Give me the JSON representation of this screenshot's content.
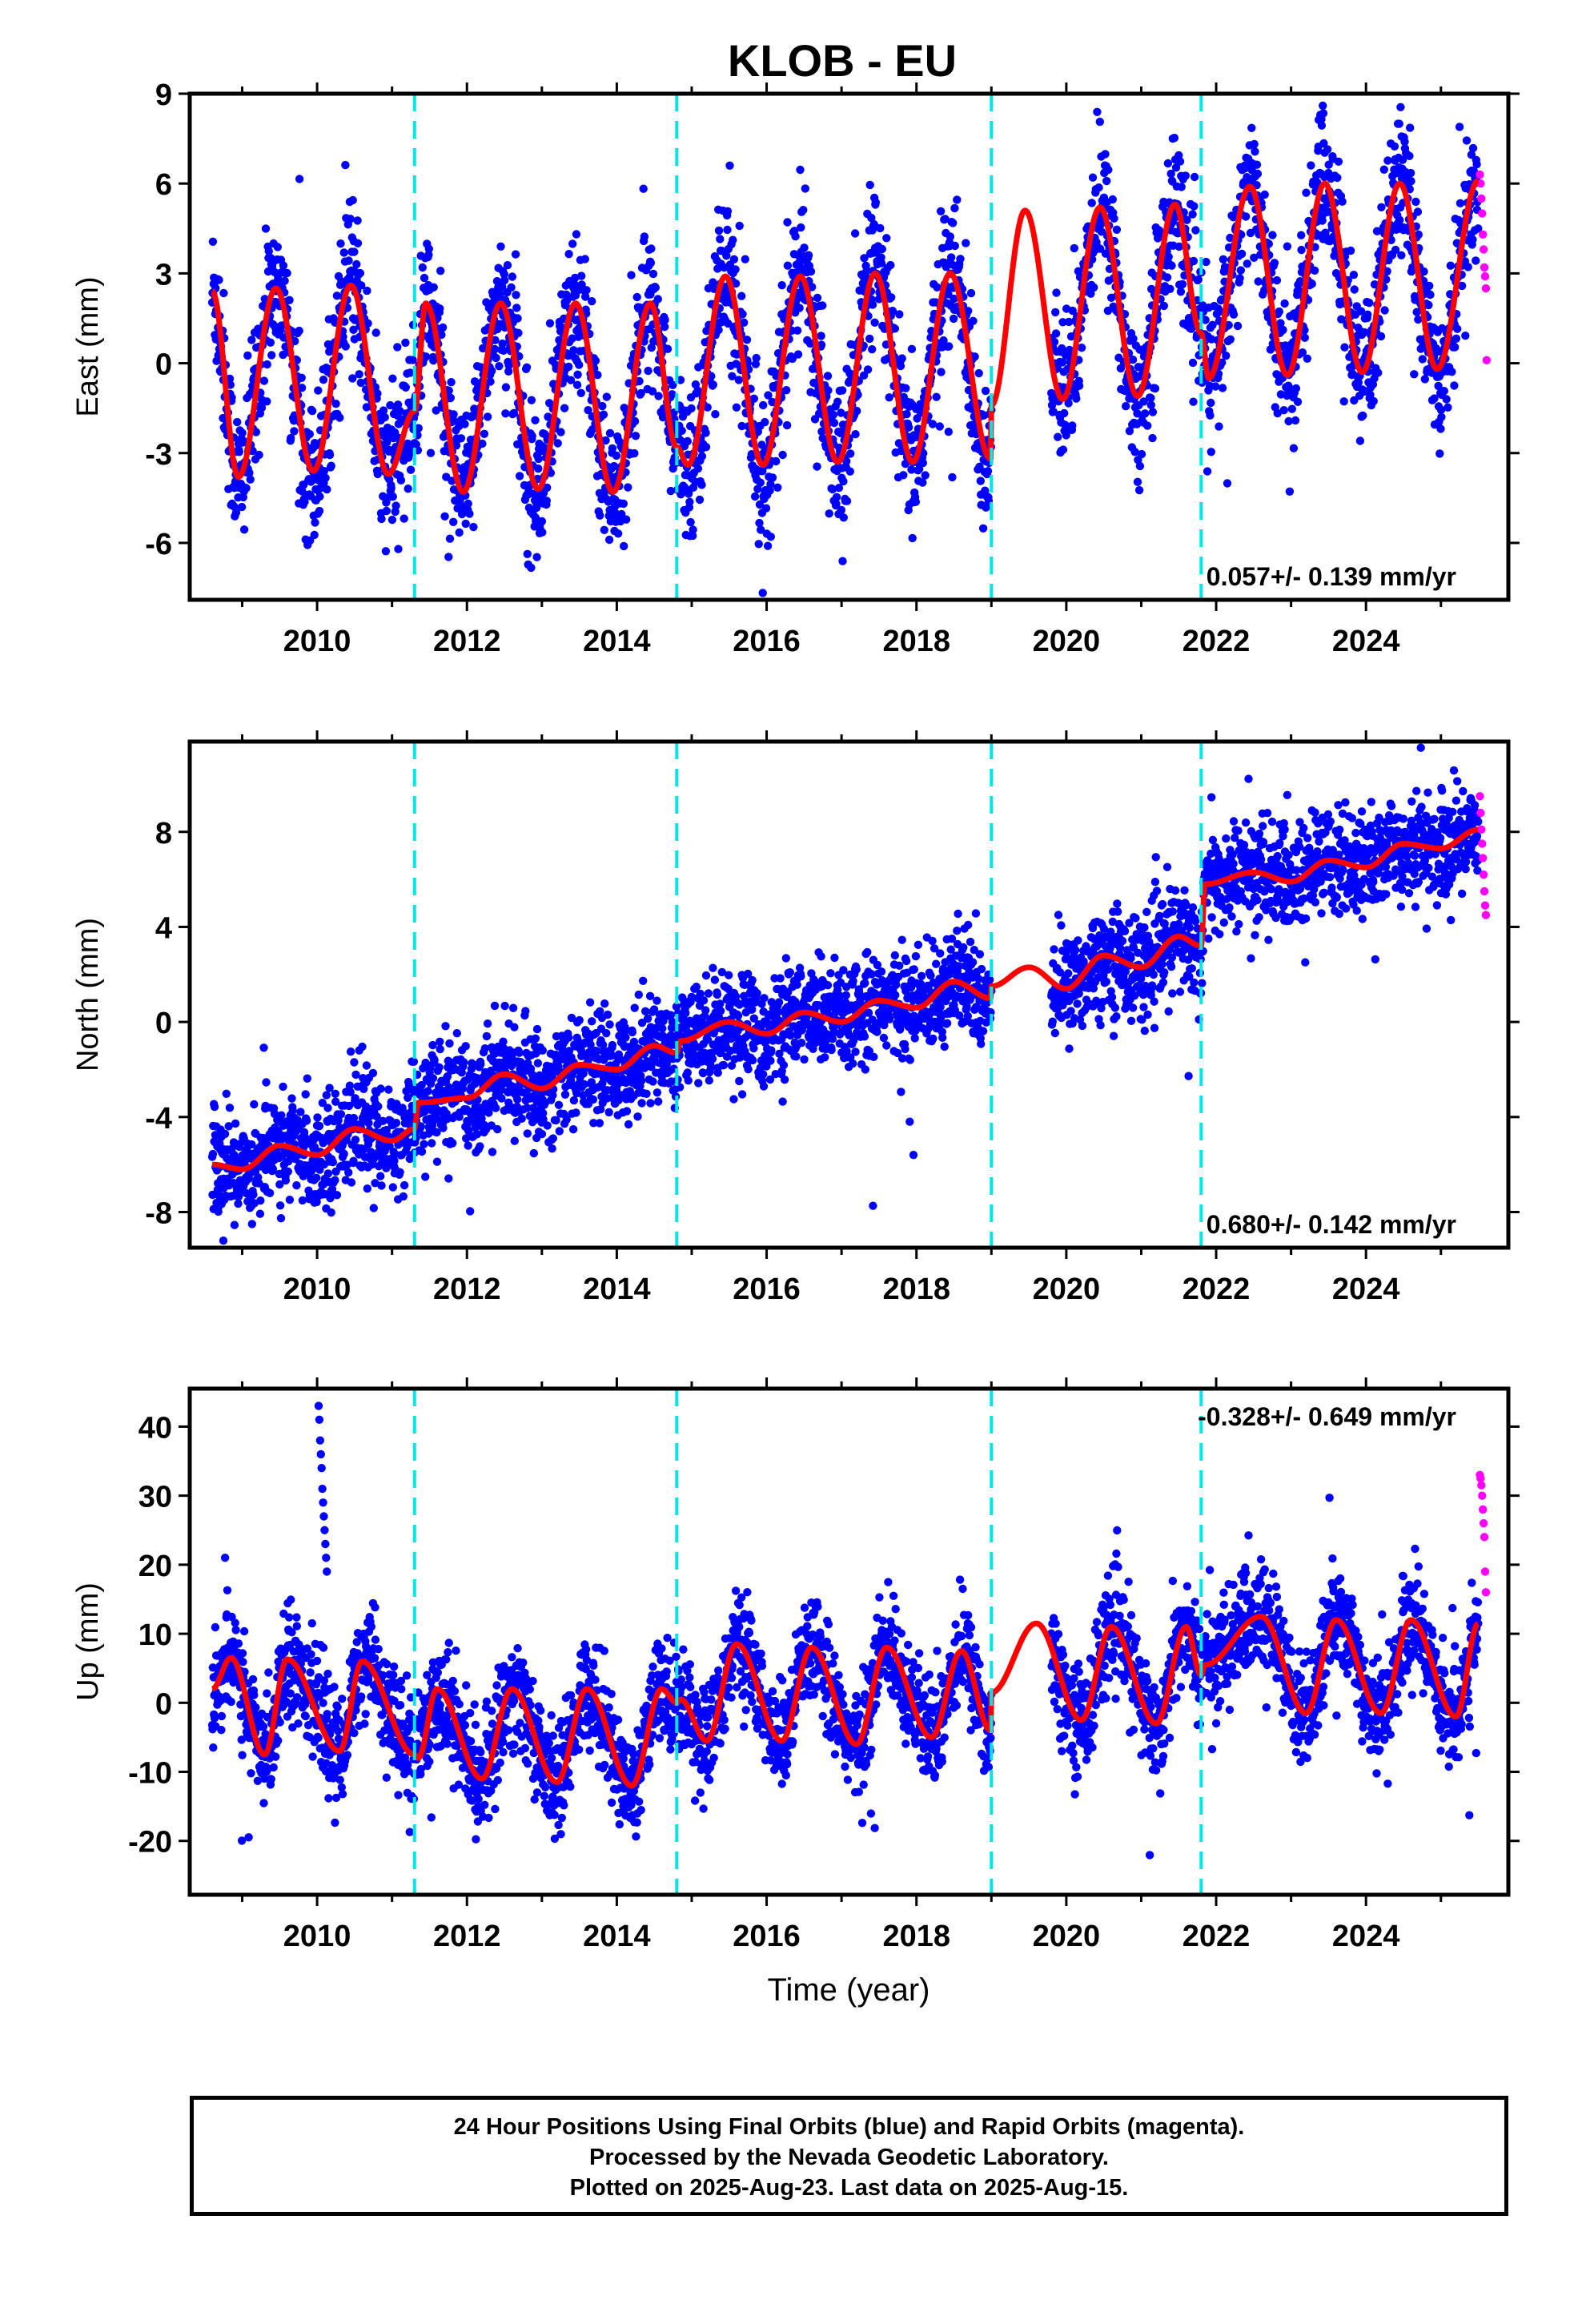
{
  "title": "KLOB - EU",
  "xlabel": "Time (year)",
  "x_ticks": [
    2010,
    2012,
    2014,
    2016,
    2018,
    2020,
    2022,
    2024
  ],
  "steps": [
    2011.3,
    2014.8,
    2019.0,
    2021.8
  ],
  "colors": {
    "final": "#0000ff",
    "rapid": "#ff00ff",
    "model": "#ff0000",
    "steps": "#00e5e5"
  },
  "caption": {
    "line1": "24 Hour Positions Using Final Orbits (blue) and Rapid Orbits (magenta).",
    "line2": "Processed by the Nevada Geodetic Laboratory.",
    "line3": "Plotted on 2025-Aug-23. Last data on 2025-Aug-15."
  },
  "chart_data": [
    {
      "type": "scatter",
      "name": "east",
      "ylabel": "East (mm)",
      "xlim": [
        2008.3,
        2025.9
      ],
      "ylim": [
        -7.9,
        9
      ],
      "yticks": [
        -6,
        -3,
        0,
        3,
        6,
        9
      ],
      "rate": "0.057+/- 0.139 mm/yr",
      "rate_position": "bottom-right",
      "series": [
        {
          "label": "final",
          "segments": [
            [
              2008.6,
              2019.0
            ],
            [
              2019.8,
              2025.5
            ]
          ],
          "trend": 0.06,
          "amp": 3.6,
          "noise": 1.2
        },
        {
          "label": "rapid",
          "x": [
            2025.52,
            2025.53,
            2025.54,
            2025.55,
            2025.56,
            2025.57,
            2025.58,
            2025.59,
            2025.6,
            2025.61
          ],
          "y": [
            6.3,
            6.0,
            5.5,
            5.0,
            4.3,
            3.8,
            3.2,
            2.9,
            2.5,
            0.1
          ]
        }
      ],
      "model_points": [
        [
          2008.6,
          2.4
        ],
        [
          2008.95,
          -3.8
        ],
        [
          2009.45,
          2.5
        ],
        [
          2009.95,
          -3.6
        ],
        [
          2010.45,
          2.6
        ],
        [
          2010.95,
          -3.7
        ],
        [
          2011.3,
          -1.6
        ],
        [
          2011.45,
          2.0
        ],
        [
          2011.95,
          -4.3
        ],
        [
          2012.45,
          2.0
        ],
        [
          2012.95,
          -4.2
        ],
        [
          2013.45,
          2.0
        ],
        [
          2013.95,
          -4.3
        ],
        [
          2014.45,
          2.0
        ],
        [
          2014.8,
          -2.8
        ],
        [
          2014.95,
          -3.4
        ],
        [
          2015.45,
          2.9
        ],
        [
          2015.95,
          -3.4
        ],
        [
          2016.45,
          2.9
        ],
        [
          2016.95,
          -3.3
        ],
        [
          2017.45,
          3.0
        ],
        [
          2017.95,
          -3.3
        ],
        [
          2018.45,
          3.0
        ],
        [
          2018.99,
          -3.2
        ],
        [
          2019.0,
          -1.4
        ],
        [
          2019.45,
          5.1
        ],
        [
          2019.95,
          -1.2
        ],
        [
          2020.45,
          5.2
        ],
        [
          2020.95,
          -1.1
        ],
        [
          2021.45,
          5.3
        ],
        [
          2021.8,
          1.0
        ],
        [
          2021.9,
          -0.5
        ],
        [
          2022.45,
          5.9
        ],
        [
          2022.95,
          -0.4
        ],
        [
          2023.45,
          6.0
        ],
        [
          2023.95,
          -0.3
        ],
        [
          2024.45,
          6.0
        ],
        [
          2024.95,
          -0.2
        ],
        [
          2025.5,
          6.1
        ]
      ]
    },
    {
      "type": "scatter",
      "name": "north",
      "ylabel": "North (mm)",
      "xlim": [
        2008.3,
        2025.9
      ],
      "ylim": [
        -9.5,
        11.8
      ],
      "yticks": [
        -8,
        -4,
        0,
        4,
        8
      ],
      "rate": "0.680+/- 0.142 mm/yr",
      "rate_position": "bottom-right",
      "series": [
        {
          "label": "final",
          "segments": [
            [
              2008.6,
              2019.0
            ],
            [
              2019.8,
              2025.5
            ]
          ],
          "trend": 0.68,
          "amp": 0.6,
          "noise": 1.1
        },
        {
          "label": "rapid",
          "x": [
            2025.52,
            2025.53,
            2025.54,
            2025.55,
            2025.56,
            2025.57,
            2025.58,
            2025.59,
            2025.6
          ],
          "y": [
            9.5,
            8.8,
            8.1,
            7.5,
            6.9,
            6.2,
            5.5,
            4.9,
            4.5
          ]
        }
      ],
      "model_points": [
        [
          2008.6,
          -6.0
        ],
        [
          2009.0,
          -6.2
        ],
        [
          2009.5,
          -5.2
        ],
        [
          2010.0,
          -5.6
        ],
        [
          2010.5,
          -4.5
        ],
        [
          2011.0,
          -5.0
        ],
        [
          2011.3,
          -4.5
        ],
        [
          2011.35,
          -3.4
        ],
        [
          2012.0,
          -3.2
        ],
        [
          2012.5,
          -2.2
        ],
        [
          2013.0,
          -2.8
        ],
        [
          2013.5,
          -1.8
        ],
        [
          2014.0,
          -2.0
        ],
        [
          2014.5,
          -1.0
        ],
        [
          2014.8,
          -1.3
        ],
        [
          2014.85,
          -0.8
        ],
        [
          2015.5,
          0.0
        ],
        [
          2016.0,
          -0.5
        ],
        [
          2016.5,
          0.4
        ],
        [
          2017.0,
          0.0
        ],
        [
          2017.5,
          0.9
        ],
        [
          2018.0,
          0.6
        ],
        [
          2018.5,
          1.7
        ],
        [
          2018.99,
          1.0
        ],
        [
          2019.0,
          1.5
        ],
        [
          2019.5,
          2.3
        ],
        [
          2020.0,
          1.4
        ],
        [
          2020.5,
          2.8
        ],
        [
          2021.0,
          2.3
        ],
        [
          2021.5,
          3.6
        ],
        [
          2021.8,
          3.2
        ],
        [
          2021.85,
          5.8
        ],
        [
          2022.5,
          6.3
        ],
        [
          2023.0,
          5.9
        ],
        [
          2023.5,
          6.8
        ],
        [
          2024.0,
          6.5
        ],
        [
          2024.5,
          7.5
        ],
        [
          2025.0,
          7.3
        ],
        [
          2025.5,
          8.1
        ]
      ]
    },
    {
      "type": "scatter",
      "name": "up",
      "ylabel": "Up (mm)",
      "xlim": [
        2008.3,
        2025.9
      ],
      "ylim": [
        -27.8,
        45.5
      ],
      "yticks": [
        -20,
        -10,
        0,
        10,
        20,
        30,
        40
      ],
      "rate": "-0.328+/- 0.649 mm/yr",
      "rate_position": "top-right",
      "series": [
        {
          "label": "final",
          "segments": [
            [
              2008.6,
              2019.0
            ],
            [
              2019.8,
              2025.5
            ]
          ],
          "trend": -0.3,
          "amp": 7.5,
          "noise": 3.8
        },
        {
          "label": "rapid",
          "x": [
            2025.52,
            2025.53,
            2025.54,
            2025.55,
            2025.56,
            2025.57,
            2025.58,
            2025.59,
            2025.6
          ],
          "y": [
            33.0,
            32.5,
            31.5,
            30.0,
            28.0,
            26.0,
            24.0,
            19.0,
            16.0
          ]
        },
        {
          "label": "outliers",
          "x": [
            2010.02,
            2010.03,
            2010.04,
            2010.05,
            2010.06,
            2010.07,
            2010.08,
            2010.09,
            2010.1,
            2010.11,
            2010.12,
            2010.13
          ],
          "y": [
            43,
            41,
            38,
            36,
            34,
            31,
            29,
            27,
            25,
            23,
            21,
            19
          ]
        }
      ],
      "model_points": [
        [
          2008.6,
          2.0
        ],
        [
          2008.85,
          6.5
        ],
        [
          2009.3,
          -7.5
        ],
        [
          2009.6,
          6.3
        ],
        [
          2010.3,
          -7.0
        ],
        [
          2010.6,
          6.0
        ],
        [
          2011.3,
          -7.5
        ],
        [
          2011.35,
          -8.0
        ],
        [
          2011.6,
          2.0
        ],
        [
          2012.2,
          -11.0
        ],
        [
          2012.6,
          2.0
        ],
        [
          2013.2,
          -11.5
        ],
        [
          2013.6,
          2.0
        ],
        [
          2014.2,
          -12.0
        ],
        [
          2014.6,
          2.0
        ],
        [
          2014.8,
          0.0
        ],
        [
          2014.85,
          0.5
        ],
        [
          2015.2,
          -5.5
        ],
        [
          2015.6,
          8.5
        ],
        [
          2016.2,
          -5.5
        ],
        [
          2016.6,
          8.0
        ],
        [
          2017.2,
          -6.0
        ],
        [
          2017.6,
          8.0
        ],
        [
          2018.2,
          -5.0
        ],
        [
          2018.6,
          7.5
        ],
        [
          2018.99,
          -4.0
        ],
        [
          2019.0,
          1.5
        ],
        [
          2019.6,
          11.5
        ],
        [
          2020.2,
          -2.5
        ],
        [
          2020.6,
          11.0
        ],
        [
          2021.2,
          -3.0
        ],
        [
          2021.6,
          11.0
        ],
        [
          2021.8,
          4.0
        ],
        [
          2021.85,
          5.5
        ],
        [
          2022.6,
          12.5
        ],
        [
          2023.2,
          -1.5
        ],
        [
          2023.6,
          12.0
        ],
        [
          2024.2,
          -1.5
        ],
        [
          2024.6,
          12.0
        ],
        [
          2025.2,
          -2.0
        ],
        [
          2025.5,
          11.5
        ]
      ]
    }
  ]
}
